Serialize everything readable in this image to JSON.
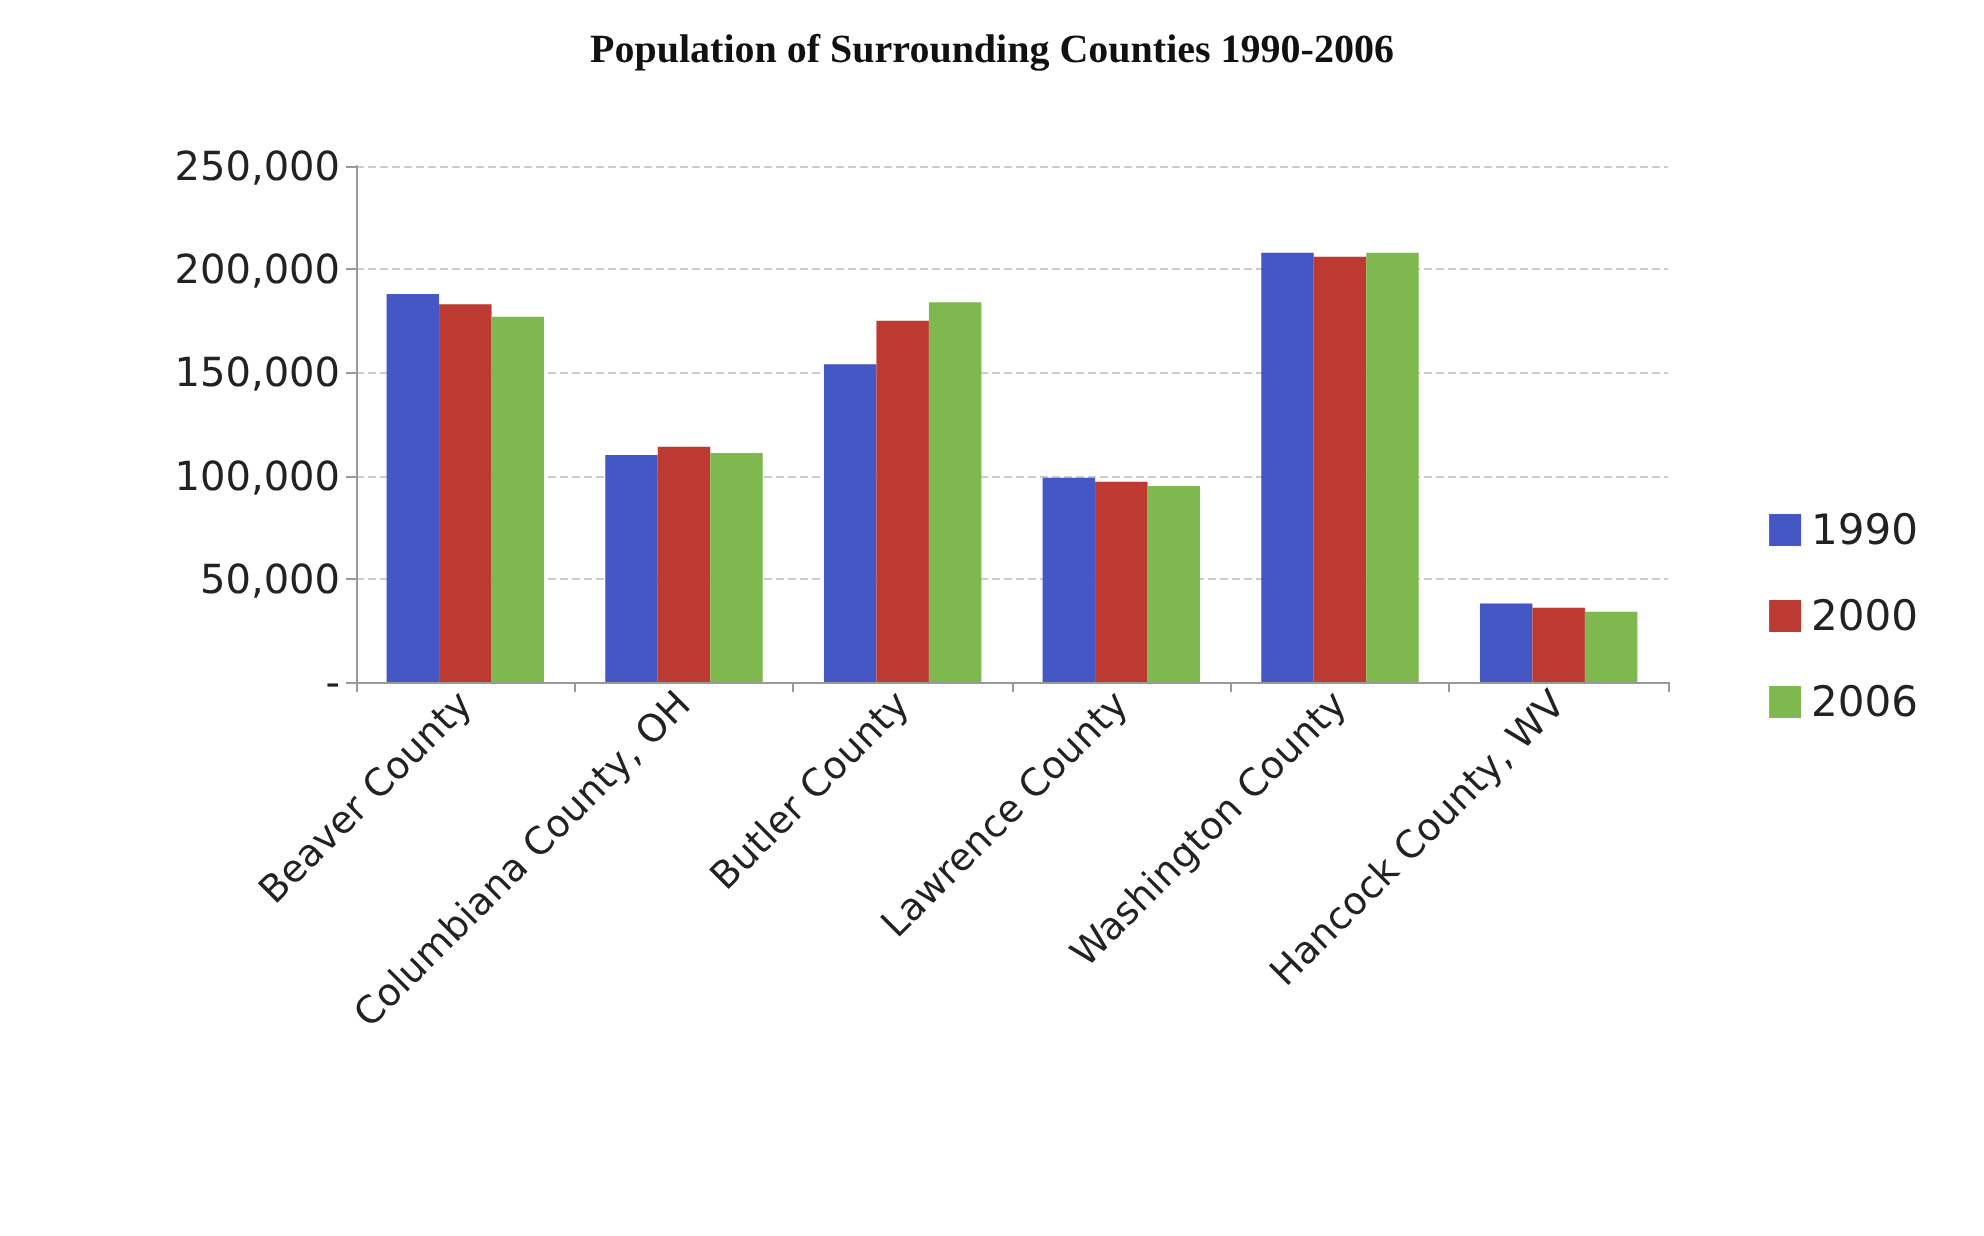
{
  "chart_data": {
    "type": "bar",
    "title": "Population of Surrounding Counties 1990-2006",
    "categories": [
      "Beaver County",
      "Columbiana County, OH",
      "Butler County",
      "Lawrence County",
      "Washington County",
      "Hancock County, WV"
    ],
    "series": [
      {
        "name": "1990",
        "color": "#4457c4",
        "values": [
          188000,
          110000,
          154000,
          99000,
          208000,
          38000
        ]
      },
      {
        "name": "2000",
        "color": "#bd3a32",
        "values": [
          183000,
          114000,
          175000,
          97000,
          206000,
          36000
        ]
      },
      {
        "name": "2006",
        "color": "#80b850",
        "values": [
          177000,
          111000,
          184000,
          95000,
          208000,
          34000
        ]
      }
    ],
    "ylim": [
      0,
      250000
    ],
    "yticks": [
      {
        "value": 0,
        "label": "-"
      },
      {
        "value": 50000,
        "label": "50,000"
      },
      {
        "value": 100000,
        "label": "100,000"
      },
      {
        "value": 150000,
        "label": "150,000"
      },
      {
        "value": 200000,
        "label": "200,000"
      },
      {
        "value": 250000,
        "label": "250,000"
      }
    ],
    "grid": "y",
    "legend": "right"
  }
}
